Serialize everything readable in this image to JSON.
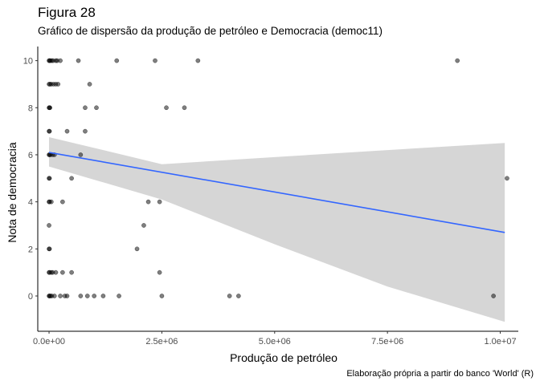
{
  "chart_data": {
    "type": "scatter",
    "title": "Figura 28",
    "subtitle": "Gráfico de dispersão da produção de petróleo e Democracia (democ11)",
    "caption": "Elaboração própria a partir do banco 'World' (R)",
    "xlabel": "Produção de petróleo",
    "ylabel": "Nota de democracia",
    "xlim": [
      -250000,
      10400000
    ],
    "ylim": [
      -1.5,
      10.6
    ],
    "x_ticks": [
      0,
      2500000,
      5000000,
      7500000,
      10000000
    ],
    "x_tick_labels": [
      "0.0e+00",
      "2.5e+06",
      "5.0e+06",
      "7.5e+06",
      "1.0e+07"
    ],
    "y_ticks": [
      0,
      2,
      4,
      6,
      8,
      10
    ],
    "y_tick_labels": [
      "0",
      "2",
      "4",
      "6",
      "8",
      "10"
    ],
    "grid": false,
    "point_color": "#000000",
    "point_opacity": 0.5,
    "series": [
      {
        "points": [
          [
            0,
            10
          ],
          [
            10000,
            10
          ],
          [
            30000,
            10
          ],
          [
            60000,
            10
          ],
          [
            90000,
            10
          ],
          [
            150000,
            10
          ],
          [
            180000,
            10
          ],
          [
            250000,
            10
          ],
          [
            650000,
            10
          ],
          [
            1500000,
            10
          ],
          [
            2350000,
            10
          ],
          [
            3300000,
            10
          ],
          [
            9050000,
            10
          ],
          [
            0,
            9
          ],
          [
            20000,
            9
          ],
          [
            50000,
            9
          ],
          [
            100000,
            9
          ],
          [
            150000,
            9
          ],
          [
            200000,
            9
          ],
          [
            900000,
            9
          ],
          [
            0,
            8
          ],
          [
            10000,
            8
          ],
          [
            20000,
            8
          ],
          [
            800000,
            8
          ],
          [
            1050000,
            8
          ],
          [
            2600000,
            8
          ],
          [
            3000000,
            8
          ],
          [
            0,
            7
          ],
          [
            10000,
            7
          ],
          [
            400000,
            7
          ],
          [
            800000,
            7
          ],
          [
            0,
            6
          ],
          [
            10000,
            6
          ],
          [
            30000,
            6
          ],
          [
            80000,
            6
          ],
          [
            120000,
            6
          ],
          [
            700000,
            6
          ],
          [
            0,
            5
          ],
          [
            10000,
            5
          ],
          [
            500000,
            5
          ],
          [
            10150000,
            5
          ],
          [
            0,
            4
          ],
          [
            10000,
            4
          ],
          [
            50000,
            4
          ],
          [
            300000,
            4
          ],
          [
            2200000,
            4
          ],
          [
            2450000,
            4
          ],
          [
            0,
            3
          ],
          [
            2100000,
            3
          ],
          [
            0,
            2
          ],
          [
            10000,
            2
          ],
          [
            1950000,
            2
          ],
          [
            0,
            1
          ],
          [
            10000,
            1
          ],
          [
            50000,
            1
          ],
          [
            80000,
            1
          ],
          [
            150000,
            1
          ],
          [
            300000,
            1
          ],
          [
            500000,
            1
          ],
          [
            2450000,
            1
          ],
          [
            0,
            0
          ],
          [
            10000,
            0
          ],
          [
            30000,
            0
          ],
          [
            60000,
            0
          ],
          [
            120000,
            0
          ],
          [
            250000,
            0
          ],
          [
            350000,
            0
          ],
          [
            400000,
            0
          ],
          [
            700000,
            0
          ],
          [
            850000,
            0
          ],
          [
            1000000,
            0
          ],
          [
            1200000,
            0
          ],
          [
            1550000,
            0
          ],
          [
            2500000,
            0
          ],
          [
            4000000,
            0
          ],
          [
            4200000,
            0
          ],
          [
            9850000,
            0
          ]
        ]
      }
    ],
    "trend_line": {
      "type": "linear",
      "color": "#3366FF",
      "x": [
        0,
        10100000
      ],
      "y": [
        6.1,
        2.7
      ]
    },
    "confidence_band": {
      "color": "#999999",
      "opacity": 0.4,
      "x": [
        0,
        2500000,
        5000000,
        7500000,
        10100000
      ],
      "lower": [
        5.5,
        4.1,
        2.2,
        0.4,
        -1.1
      ],
      "upper": [
        6.75,
        5.6,
        5.9,
        6.2,
        6.5
      ]
    }
  }
}
